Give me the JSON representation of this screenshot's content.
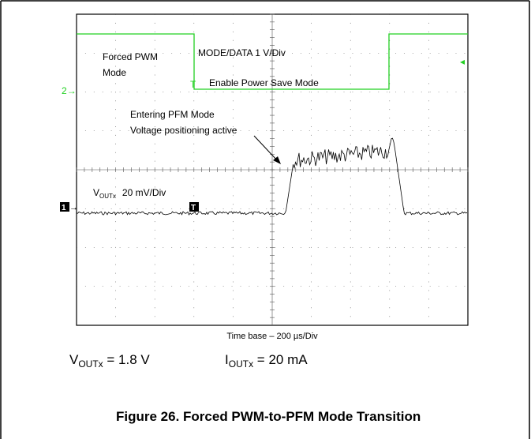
{
  "scope": {
    "mode_label": [
      "Forced PWM",
      "Mode"
    ],
    "channel2_label": "MODE/DATA 1 V/Div",
    "enable_label": "Enable Power Save Mode",
    "channel2_marker": "2",
    "pfm_label": [
      "Entering PFM Mode",
      "Voltage positioning active"
    ],
    "vout_label": {
      "main": "V",
      "sub": "OUTx",
      "scale": "20 mV/Div"
    },
    "channel1_marker": "1",
    "trigger_marker": "T",
    "time_base": "Time base – 200 µs/Div"
  },
  "conditions": [
    {
      "main": "V",
      "sub": "OUTx",
      "rest": " = 1.8 V"
    },
    {
      "main": "I",
      "sub": "OUTx",
      "rest": " = 20 mA"
    }
  ],
  "caption": "Figure 26. Forced PWM-to-PFM Mode Transition"
}
